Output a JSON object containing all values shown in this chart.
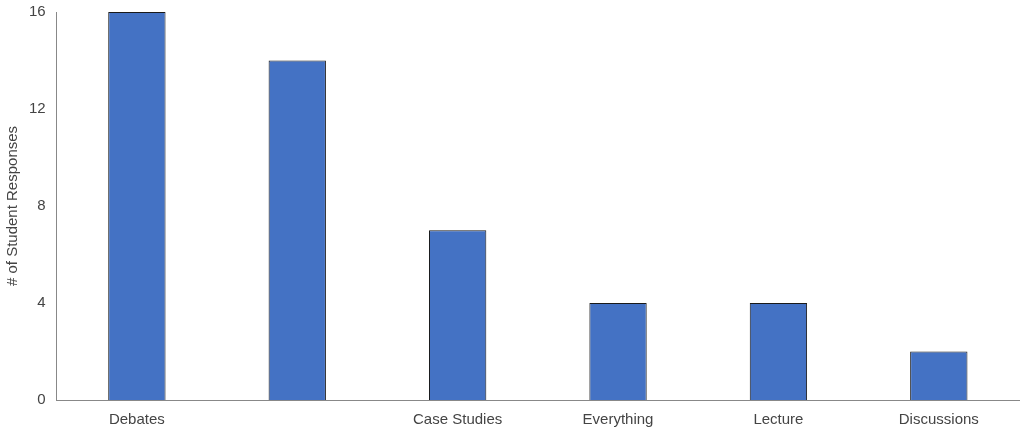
{
  "chart_data": {
    "type": "bar",
    "ylabel": "# of Student Responses",
    "categories": [
      "Debates",
      null,
      "Case Studies",
      "Everything",
      "Lecture",
      "Discussions"
    ],
    "values": [
      16,
      14,
      7,
      4,
      4,
      2
    ],
    "color": "#4472c4",
    "ylim": [
      0,
      16
    ],
    "yticks": [
      0,
      4,
      8,
      12,
      16
    ],
    "grid": false,
    "legend": false
  }
}
